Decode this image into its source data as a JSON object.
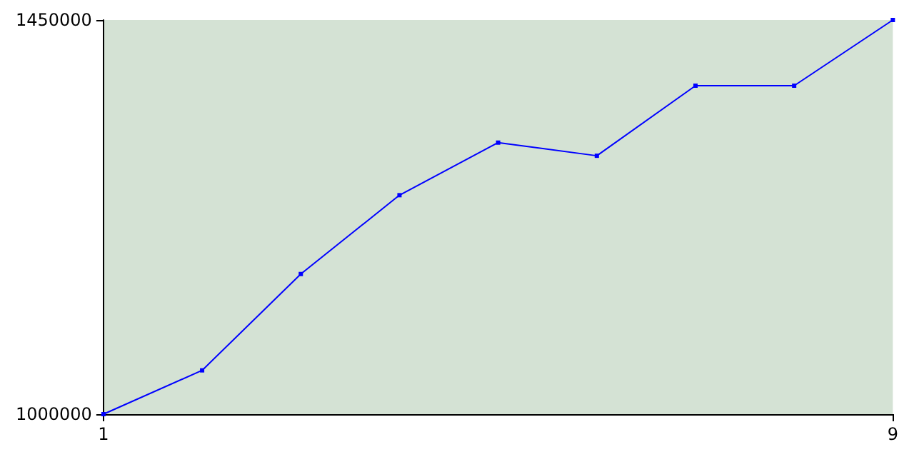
{
  "chart_data": {
    "type": "line",
    "x": [
      1,
      2,
      3,
      4,
      5,
      6,
      7,
      8,
      9
    ],
    "values": [
      1000000,
      1050000,
      1160000,
      1250000,
      1310000,
      1295000,
      1375000,
      1375000,
      1450000
    ],
    "color": "#0000ff",
    "xlim": [
      1,
      9
    ],
    "xticks": [
      1,
      9
    ],
    "ylim": [
      1000000,
      1450000
    ],
    "yticks": [
      1000000,
      1450000
    ],
    "grid": false,
    "marker": "square",
    "line_style": "solid"
  }
}
